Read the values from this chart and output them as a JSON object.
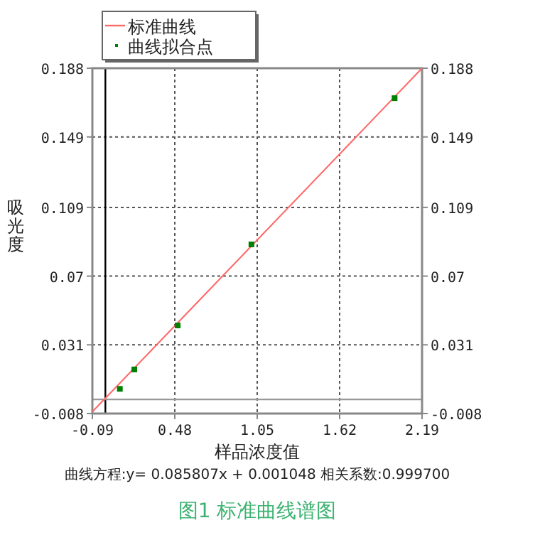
{
  "chart_data": {
    "type": "line",
    "xlabel": "样品浓度值",
    "ylabel": "吸光度",
    "annotations": [
      "曲线方程:y= 0.085807x + 0.001048 相关系数:0.999700",
      "图1 标准曲线谱图"
    ],
    "xlim": [
      -0.09,
      2.19
    ],
    "xticks": [
      -0.09,
      0.48,
      1.05,
      1.62,
      2.19
    ],
    "ylim": [
      -0.008,
      0.188
    ],
    "yticks": [
      -0.008,
      0.031,
      0.07,
      0.109,
      0.149,
      0.188
    ],
    "y2lim": [
      -0.008,
      0.188
    ],
    "y2ticks": [
      -0.008,
      0.031,
      0.07,
      0.109,
      0.149,
      0.188
    ],
    "grid": true,
    "legend": "top left",
    "ref_lines": [
      {
        "axis": "x",
        "value": 0,
        "color": "#000000"
      },
      {
        "axis": "y",
        "value": 0,
        "color": "#999999"
      }
    ],
    "series": [
      {
        "name": "标准曲线",
        "color": "#ff6666",
        "x": [
          -0.09,
          2.19
        ],
        "values": [
          -0.007,
          0.188
        ],
        "marker": "none"
      },
      {
        "name": "曲线拟合点",
        "type": "scatter",
        "color": "#008000",
        "x": [
          0.1,
          0.2,
          0.5,
          1.01,
          2.0
        ],
        "values": [
          0.006,
          0.017,
          0.042,
          0.088,
          0.171
        ],
        "marker": "square"
      }
    ]
  }
}
